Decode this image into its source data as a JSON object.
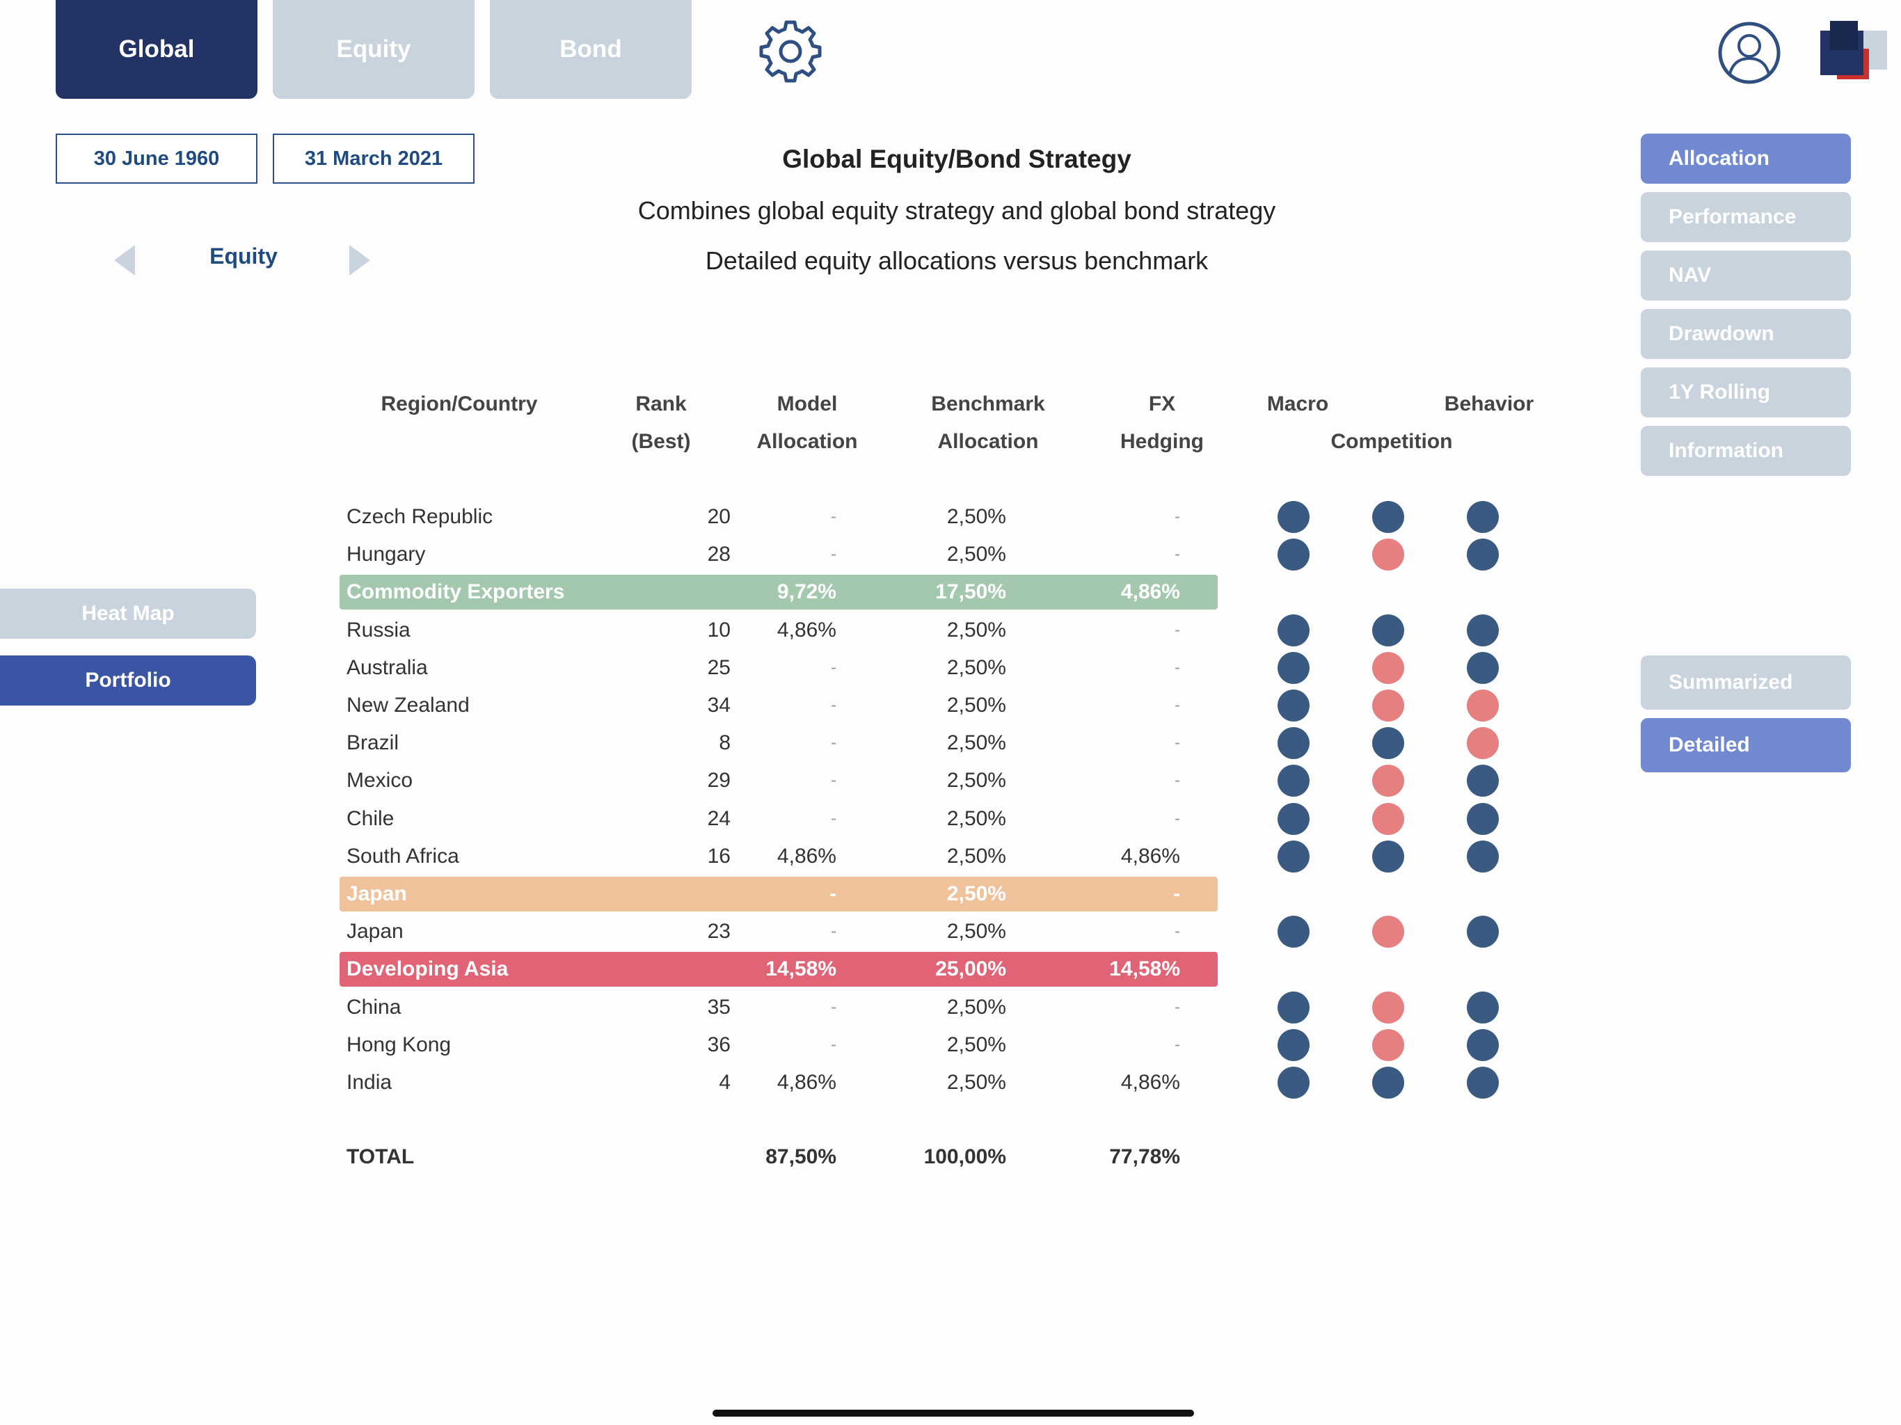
{
  "top_tabs": {
    "global": "Global",
    "equity": "Equity",
    "bond": "Bond"
  },
  "dates": {
    "start": "30 June 1960",
    "end": "31 March 2021"
  },
  "asset_nav": {
    "label": "Equity"
  },
  "header": {
    "title": "Global Equity/Bond Strategy",
    "subtitle": "Combines global equity strategy and global bond strategy",
    "description": "Detailed equity allocations versus benchmark"
  },
  "left_menu": {
    "heat_map": "Heat Map",
    "portfolio": "Portfolio"
  },
  "right_menu": {
    "allocation": "Allocation",
    "performance": "Performance",
    "nav": "NAV",
    "drawdown": "Drawdown",
    "rolling": "1Y Rolling",
    "information": "Information",
    "summarized": "Summarized",
    "detailed": "Detailed"
  },
  "table": {
    "headers": {
      "region_country": "Region/Country",
      "rank_1": "Rank",
      "rank_2": "(Best)",
      "model_1": "Model",
      "model_2": "Allocation",
      "bench_1": "Benchmark",
      "bench_2": "Allocation",
      "fx_1": "FX",
      "fx_2": "Hedging",
      "macro": "Macro",
      "competition": "Competition",
      "behavior": "Behavior"
    },
    "rows": [
      {
        "name": "Czech Republic",
        "rank": "20",
        "model": "-",
        "bench": "2,50%",
        "fx": "-",
        "dots": [
          "blue",
          "blue",
          "blue"
        ]
      },
      {
        "name": "Hungary",
        "rank": "28",
        "model": "-",
        "bench": "2,50%",
        "fx": "-",
        "dots": [
          "blue",
          "pink",
          "blue"
        ]
      },
      {
        "group": "green",
        "name": "Commodity Exporters",
        "model": "9,72%",
        "bench": "17,50%",
        "fx": "4,86%"
      },
      {
        "name": "Russia",
        "rank": "10",
        "model": "4,86%",
        "bench": "2,50%",
        "fx": "-",
        "dots": [
          "blue",
          "blue",
          "blue"
        ]
      },
      {
        "name": "Australia",
        "rank": "25",
        "model": "-",
        "bench": "2,50%",
        "fx": "-",
        "dots": [
          "blue",
          "pink",
          "blue"
        ]
      },
      {
        "name": "New Zealand",
        "rank": "34",
        "model": "-",
        "bench": "2,50%",
        "fx": "-",
        "dots": [
          "blue",
          "pink",
          "pink"
        ]
      },
      {
        "name": "Brazil",
        "rank": "8",
        "model": "-",
        "bench": "2,50%",
        "fx": "-",
        "dots": [
          "blue",
          "blue",
          "pink"
        ]
      },
      {
        "name": "Mexico",
        "rank": "29",
        "model": "-",
        "bench": "2,50%",
        "fx": "-",
        "dots": [
          "blue",
          "pink",
          "blue"
        ]
      },
      {
        "name": "Chile",
        "rank": "24",
        "model": "-",
        "bench": "2,50%",
        "fx": "-",
        "dots": [
          "blue",
          "pink",
          "blue"
        ]
      },
      {
        "name": "South Africa",
        "rank": "16",
        "model": "4,86%",
        "bench": "2,50%",
        "fx": "4,86%",
        "dots": [
          "blue",
          "blue",
          "blue"
        ]
      },
      {
        "group": "orange",
        "name": "Japan",
        "model": "-",
        "bench": "2,50%",
        "fx": "-"
      },
      {
        "name": "Japan",
        "rank": "23",
        "model": "-",
        "bench": "2,50%",
        "fx": "-",
        "dots": [
          "blue",
          "pink",
          "blue"
        ]
      },
      {
        "group": "red",
        "name": "Developing Asia",
        "model": "14,58%",
        "bench": "25,00%",
        "fx": "14,58%"
      },
      {
        "name": "China",
        "rank": "35",
        "model": "-",
        "bench": "2,50%",
        "fx": "-",
        "dots": [
          "blue",
          "pink",
          "blue"
        ]
      },
      {
        "name": "Hong Kong",
        "rank": "36",
        "model": "-",
        "bench": "2,50%",
        "fx": "-",
        "dots": [
          "blue",
          "pink",
          "blue"
        ]
      },
      {
        "name": "India",
        "rank": "4",
        "model": "4,86%",
        "bench": "2,50%",
        "fx": "4,86%",
        "dots": [
          "blue",
          "blue",
          "blue"
        ]
      }
    ],
    "total": {
      "label": "TOTAL",
      "model": "87,50%",
      "bench": "100,00%",
      "fx": "77,78%"
    }
  },
  "colors": {
    "primary_dark": "#233366",
    "accent": "#7189d0",
    "dot_blue": "#3a5a82",
    "dot_pink": "#e57f80",
    "group_green": "#a3c8ae",
    "group_orange": "#f0c29c",
    "group_red": "#e06476"
  },
  "icons": {
    "settings": "gear-icon",
    "user": "user-avatar-icon",
    "app": "app-logo-icon"
  }
}
